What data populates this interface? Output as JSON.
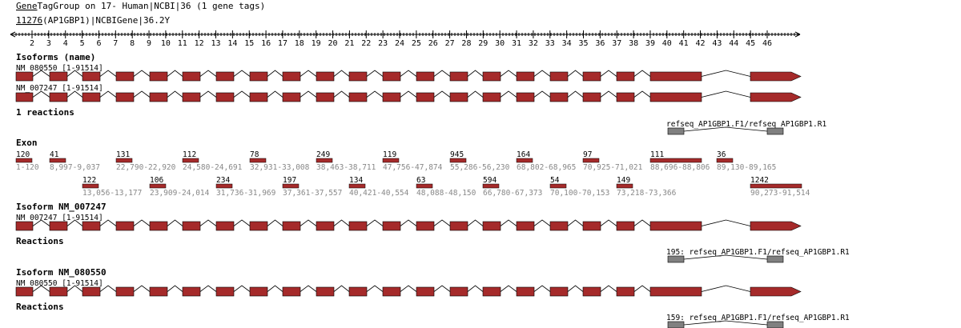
{
  "header": {
    "prefix": "Gene",
    "rest": "TagGroup on 17- Human|NCBI|36 (1 gene tags)",
    "gene_id": "11276",
    "gene_rest": "(AP1GBP1)|NCBIGene|36.2",
    "suffix": "Y"
  },
  "ruler": {
    "first": 2,
    "last": 46
  },
  "colors": {
    "exon": "#a52a2a",
    "reaction": "#808080",
    "coord": "#888888"
  },
  "sections": {
    "isoforms_name": "Isoforms (name)",
    "reactions_count": "1 reactions",
    "exon": "Exon",
    "isoform_a": "Isoform NM_007247",
    "isoform_b": "Isoform NM_080550",
    "reactions": "Reactions"
  },
  "transcripts": {
    "nm080550": "NM_080550 [1-91514]",
    "nm007247": "NM_007247 [1-91514]"
  },
  "reaction_labels": {
    "top": "refseq_AP1GBP1.F1/refseq_AP1GBP1.R1",
    "a": "195: refseq_AP1GBP1.F1/refseq_AP1GBP1.R1",
    "b": "159: refseq_AP1GBP1.F1/refseq_AP1GBP1.R1"
  },
  "exons_row1": [
    {
      "size": "120",
      "range": "1-120"
    },
    {
      "size": "41",
      "range": "8,997-9,037"
    },
    {
      "size": "131",
      "range": "22,790-22,920"
    },
    {
      "size": "112",
      "range": "24,580-24,691"
    },
    {
      "size": "78",
      "range": "32,931-33,008"
    },
    {
      "size": "249",
      "range": "38,463-38,711"
    },
    {
      "size": "119",
      "range": "47,756-47,874"
    },
    {
      "size": "945",
      "range": "55,286-56,230"
    },
    {
      "size": "164",
      "range": "68,802-68,965"
    },
    {
      "size": "97",
      "range": "70,925-71,021"
    },
    {
      "size": "111",
      "range": "88,696-88,806"
    },
    {
      "size": "36",
      "range": "89,130-89,165"
    }
  ],
  "exons_row2": [
    {
      "size": "122",
      "range": "13,056-13,177"
    },
    {
      "size": "106",
      "range": "23,909-24,014"
    },
    {
      "size": "234",
      "range": "31,736-31,969"
    },
    {
      "size": "197",
      "range": "37,361-37,557"
    },
    {
      "size": "134",
      "range": "40,421-40,554"
    },
    {
      "size": "63",
      "range": "48,088-48,150"
    },
    {
      "size": "594",
      "range": "66,780-67,373"
    },
    {
      "size": "54",
      "range": "70,100-70,153"
    },
    {
      "size": "149",
      "range": "73,218-73,366"
    },
    {
      "size": "1242",
      "range": "90,273-91,514"
    }
  ]
}
